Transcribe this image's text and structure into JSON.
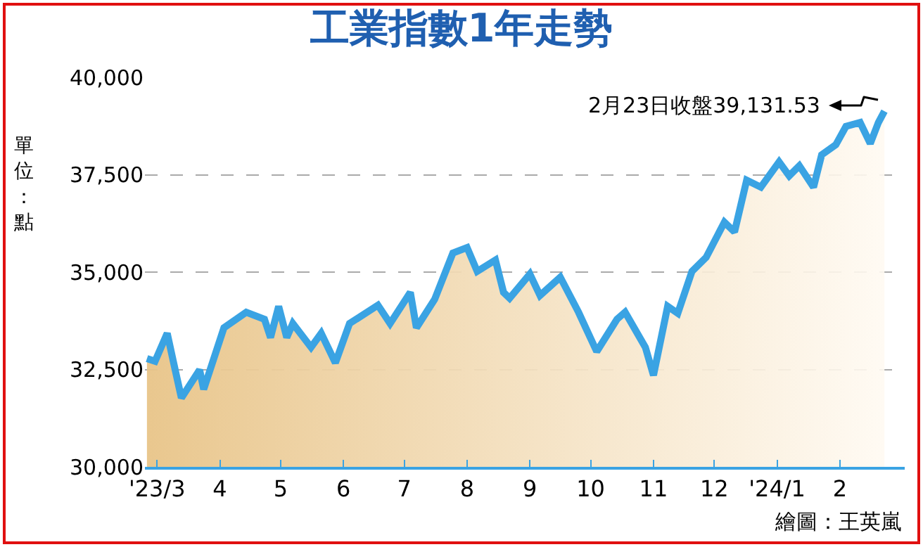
{
  "chart_data": {
    "type": "area",
    "title": "工業指數1年走勢",
    "ylabel": "單位：點",
    "annotations": [
      "2月23日收盤39,131.53",
      "繪圖：王英嵐"
    ],
    "x": [
      "2023-02-24",
      "2023-02-28",
      "2023-03-06",
      "2023-03-09",
      "2023-03-13",
      "2023-03-22",
      "2023-03-24",
      "2023-04-03",
      "2023-04-14",
      "2023-04-23",
      "2023-04-26",
      "2023-04-30",
      "2023-05-04",
      "2023-05-07",
      "2023-05-16",
      "2023-05-21",
      "2023-05-28",
      "2023-06-04",
      "2023-06-18",
      "2023-06-24",
      "2023-07-04",
      "2023-07-07",
      "2023-07-16",
      "2023-07-25",
      "2023-08-01",
      "2023-08-06",
      "2023-08-15",
      "2023-08-19",
      "2023-08-22",
      "2023-09-01",
      "2023-09-06",
      "2023-09-16",
      "2023-09-25",
      "2023-10-04",
      "2023-10-14",
      "2023-10-18",
      "2023-10-28",
      "2023-11-01",
      "2023-11-08",
      "2023-11-13",
      "2023-11-20",
      "2023-11-27",
      "2023-12-06",
      "2023-12-11",
      "2023-12-17",
      "2023-12-24",
      "2024-01-02",
      "2024-01-07",
      "2024-01-12",
      "2024-01-19",
      "2024-01-23",
      "2024-01-30",
      "2024-02-04",
      "2024-02-11",
      "2024-02-16",
      "2024-02-20",
      "2024-02-23"
    ],
    "series": [
      {
        "color": "#3aa3e3",
        "values": [
          32780,
          32710,
          33430,
          32710,
          31770,
          32490,
          31990,
          33570,
          33970,
          33790,
          33320,
          34120,
          33320,
          33680,
          33070,
          33430,
          32670,
          33680,
          34150,
          33680,
          34480,
          33570,
          34300,
          35490,
          35630,
          35020,
          35310,
          34480,
          34330,
          34950,
          34400,
          34870,
          33970,
          32960,
          33790,
          33970,
          33070,
          32350,
          34120,
          33940,
          35020,
          35380,
          36280,
          36030,
          37360,
          37180,
          37830,
          37470,
          37730,
          37180,
          38010,
          38270,
          38740,
          38840,
          38300,
          38840,
          39130
        ]
      }
    ],
    "xlim": [
      "2023-02-23",
      "2024-03-04"
    ],
    "xticks": [
      {
        "value": "2023-03-01",
        "label": "'23/3"
      },
      {
        "value": "2023-04-01",
        "label": "4"
      },
      {
        "value": "2023-05-01",
        "label": "5"
      },
      {
        "value": "2023-06-01",
        "label": "6"
      },
      {
        "value": "2023-07-01",
        "label": "7"
      },
      {
        "value": "2023-08-01",
        "label": "8"
      },
      {
        "value": "2023-09-01",
        "label": "9"
      },
      {
        "value": "2023-10-01",
        "label": "10"
      },
      {
        "value": "2023-11-01",
        "label": "11"
      },
      {
        "value": "2023-12-01",
        "label": "12"
      },
      {
        "value": "2024-01-01",
        "label": "'24/1"
      },
      {
        "value": "2024-02-01",
        "label": "2"
      }
    ],
    "ylim": [
      30000,
      40000
    ],
    "yticks": [
      {
        "value": 30000,
        "label": "30,000"
      },
      {
        "value": 32500,
        "label": "32,500"
      },
      {
        "value": 35000,
        "label": "35,000"
      },
      {
        "value": 37500,
        "label": "37,500"
      },
      {
        "value": 40000,
        "label": "40,000"
      }
    ],
    "grid": "y"
  }
}
